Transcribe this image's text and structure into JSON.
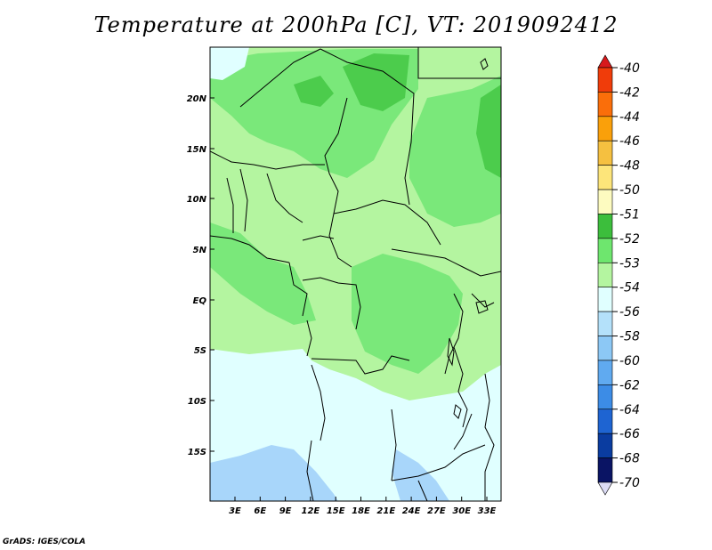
{
  "title": "Temperature at 200hPa [C], VT: 2019092412",
  "credit": "GrADS: IGES/COLA",
  "map": {
    "lat_ticks": [
      "20N",
      "15N",
      "10N",
      "5N",
      "EQ",
      "5S",
      "10S",
      "15S"
    ],
    "lon_ticks": [
      "3E",
      "6E",
      "9E",
      "12E",
      "15E",
      "18E",
      "21E",
      "24E",
      "27E",
      "30E",
      "33E"
    ]
  },
  "colorbar": {
    "levels": [
      "-40",
      "-42",
      "-44",
      "-46",
      "-48",
      "-50",
      "-51",
      "-52",
      "-53",
      "-54",
      "-56",
      "-58",
      "-60",
      "-62",
      "-64",
      "-66",
      "-68",
      "-70"
    ],
    "colors": [
      "#d7191c",
      "#f03c0a",
      "#fa6e0a",
      "#faa00a",
      "#f5c040",
      "#fde57a",
      "#fdfbc0",
      "#3cbe3c",
      "#6ee66e",
      "#b4f5a0",
      "#e0ffff",
      "#b4e1fa",
      "#8cc8f5",
      "#60aaf0",
      "#3c8ce6",
      "#1e64d2",
      "#0a3ca0",
      "#0a1464",
      "#dcdcf5"
    ]
  },
  "fields": {
    "colors": {
      "warm_dark": "#4ccc4c",
      "warm": "#7ae87a",
      "mid": "#b4f5a0",
      "cool": "#e0ffff",
      "cold": "#a8d6fa"
    }
  }
}
